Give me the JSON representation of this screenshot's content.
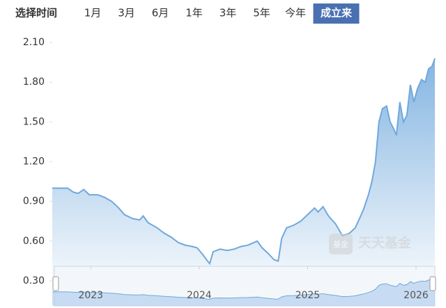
{
  "range_selector": {
    "label": "选择时间",
    "options": [
      "1月",
      "3月",
      "6月",
      "1年",
      "3年",
      "5年",
      "今年",
      "成立来"
    ],
    "active_index": 7
  },
  "watermark": {
    "logo": "基金",
    "text": "天天基金"
  },
  "chart_data": {
    "type": "area",
    "color": "#6fa8dc",
    "x": [
      2022.645,
      2022.787,
      2022.839,
      2022.884,
      2022.935,
      2022.987,
      2023.064,
      2023.129,
      2023.193,
      2023.258,
      2023.31,
      2023.387,
      2023.451,
      2023.484,
      2023.529,
      2023.613,
      2023.677,
      2023.742,
      2023.806,
      2023.871,
      2023.935,
      2023.98,
      2024.032,
      2024.077,
      2024.097,
      2024.129,
      2024.193,
      2024.258,
      2024.322,
      2024.387,
      2024.451,
      2024.535,
      2024.58,
      2024.645,
      2024.69,
      2024.729,
      2024.761,
      2024.806,
      2024.871,
      2024.935,
      2025.0,
      2025.064,
      2025.097,
      2025.142,
      2025.193,
      2025.258,
      2025.322,
      2025.387,
      2025.439,
      2025.484,
      2025.516,
      2025.561,
      2025.593,
      2025.626,
      2025.658,
      2025.69,
      2025.729,
      2025.761,
      2025.793,
      2025.819,
      2025.851,
      2025.884,
      2025.916,
      2025.948,
      2025.98,
      2026.013,
      2026.051,
      2026.084,
      2026.116,
      2026.148,
      2026.174
    ],
    "values": [
      1.0,
      1.0,
      0.97,
      0.96,
      0.99,
      0.95,
      0.95,
      0.93,
      0.9,
      0.85,
      0.8,
      0.77,
      0.76,
      0.79,
      0.74,
      0.7,
      0.66,
      0.63,
      0.59,
      0.57,
      0.56,
      0.55,
      0.5,
      0.45,
      0.43,
      0.52,
      0.54,
      0.53,
      0.54,
      0.56,
      0.57,
      0.6,
      0.55,
      0.5,
      0.46,
      0.45,
      0.62,
      0.7,
      0.72,
      0.75,
      0.8,
      0.85,
      0.82,
      0.86,
      0.79,
      0.73,
      0.64,
      0.66,
      0.7,
      0.78,
      0.84,
      0.95,
      1.05,
      1.2,
      1.5,
      1.6,
      1.62,
      1.5,
      1.45,
      1.4,
      1.65,
      1.5,
      1.55,
      1.78,
      1.65,
      1.75,
      1.82,
      1.8,
      1.9,
      1.92,
      1.98
    ],
    "xlim": [
      2022.645,
      2026.18
    ],
    "xticks": [
      2023,
      2024,
      2025,
      2026
    ],
    "ylim": [
      0.3,
      2.1
    ],
    "yticks": [
      {
        "value": 0.3,
        "label": "0.30"
      },
      {
        "value": 0.6,
        "label": "0.60"
      },
      {
        "value": 0.9,
        "label": "0.90"
      },
      {
        "value": 1.2,
        "label": "1.20"
      },
      {
        "value": 1.5,
        "label": "1.50"
      },
      {
        "value": 1.8,
        "label": "1.80"
      },
      {
        "value": 2.1,
        "label": "2.10"
      }
    ]
  }
}
